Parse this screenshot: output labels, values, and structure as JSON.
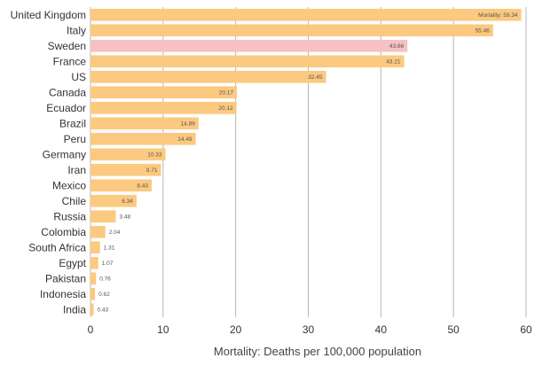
{
  "chart_data": {
    "type": "bar",
    "orientation": "horizontal",
    "title": "",
    "xlabel": "Mortality: Deaths per 100,000 population",
    "ylabel": "",
    "xlim": [
      0,
      60
    ],
    "xticks": [
      0,
      10,
      20,
      30,
      40,
      50,
      60
    ],
    "xtick_labels": [
      "0",
      "10",
      "20",
      "30",
      "40",
      "50",
      "60"
    ],
    "grid": true,
    "value_prefix_first": "Mortality: ",
    "categories": [
      "United Kingdom",
      "Italy",
      "Sweden",
      "France",
      "US",
      "Canada",
      "Ecuador",
      "Brazil",
      "Peru",
      "Germany",
      "Iran",
      "Mexico",
      "Chile",
      "Russia",
      "Colombia",
      "South Africa",
      "Egypt",
      "Pakistan",
      "Indonesia",
      "India"
    ],
    "values": [
      59.34,
      55.46,
      43.66,
      43.21,
      32.45,
      20.17,
      20.12,
      14.89,
      14.49,
      10.33,
      9.71,
      8.43,
      6.34,
      3.48,
      2.04,
      1.31,
      1.07,
      0.76,
      0.62,
      0.43
    ],
    "value_labels": [
      "59.34",
      "55.46",
      "43.66",
      "43.21",
      "32.45",
      "20.17",
      "20.12",
      "14.89",
      "14.49",
      "10.33",
      "9.71",
      "8.43",
      "6.34",
      "3.48",
      "2.04",
      "1.31",
      "1.07",
      "0.76",
      "0.62",
      "0.43"
    ],
    "highlight": "Sweden",
    "colors": {
      "bar": "#fbc97f",
      "highlight": "#f7c0c2",
      "grid": "#b5b5b5",
      "text": "#333333"
    }
  }
}
